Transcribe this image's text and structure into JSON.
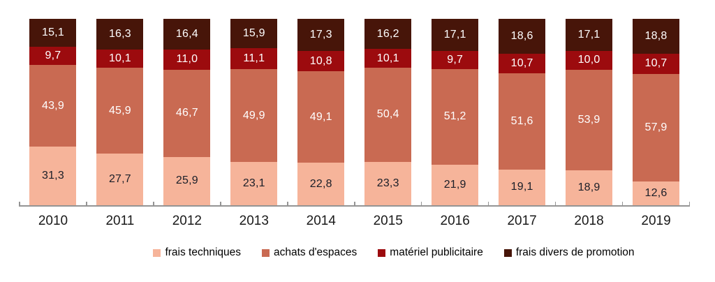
{
  "chart_data": {
    "type": "bar",
    "stacked": true,
    "unit": "percent",
    "title": "",
    "xlabel": "",
    "ylabel": "",
    "ylim": [
      0,
      100
    ],
    "grid": false,
    "decimal_separator": ",",
    "legend_position": "bottom",
    "axis_color": "#949494",
    "categories": [
      "2010",
      "2011",
      "2012",
      "2013",
      "2014",
      "2015",
      "2016",
      "2017",
      "2018",
      "2019"
    ],
    "series": [
      {
        "name": "frais techniques",
        "color": "#F6B49A",
        "label_color": "#1A1E28",
        "values": [
          31.3,
          27.7,
          25.9,
          23.1,
          22.8,
          23.3,
          21.9,
          19.1,
          18.9,
          12.6
        ]
      },
      {
        "name": "achats d'espaces",
        "color": "#C96A52",
        "label_color": "#FFFFFF",
        "values": [
          43.9,
          45.9,
          46.7,
          49.9,
          49.1,
          50.4,
          51.2,
          51.6,
          53.9,
          57.9
        ]
      },
      {
        "name": "matériel publicitaire",
        "color": "#9C0B0E",
        "label_color": "#FFFFFF",
        "values": [
          9.7,
          10.1,
          11.0,
          11.1,
          10.8,
          10.1,
          9.7,
          10.7,
          10.0,
          10.7
        ]
      },
      {
        "name": "frais divers de promotion",
        "color": "#471509",
        "label_color": "#FFFFFF",
        "values": [
          15.1,
          16.3,
          16.4,
          15.9,
          17.3,
          16.2,
          17.1,
          18.6,
          17.1,
          18.8
        ]
      }
    ]
  }
}
